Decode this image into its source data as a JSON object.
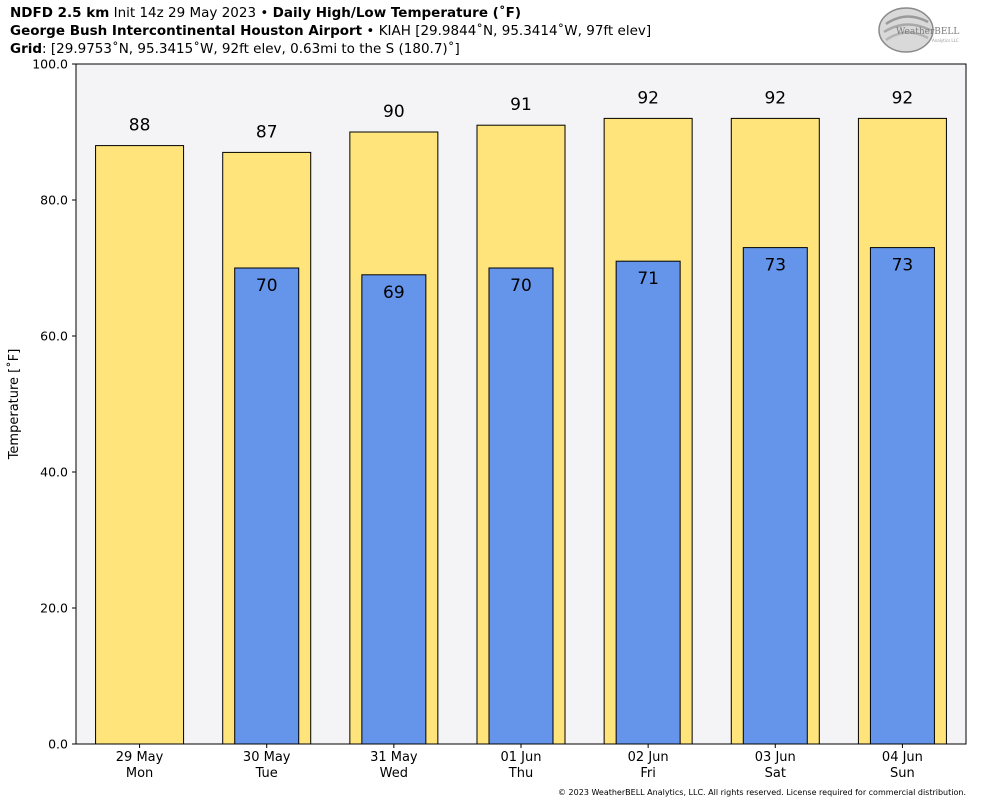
{
  "header": {
    "line1_bold": "NDFD 2.5 km",
    "line1_mid": "Init 14z 29 May 2023",
    "line1_sep": "•",
    "line1_bold2": "Daily High/Low Temperature (˚F)",
    "line2_bold": "George Bush Intercontinental Houston Airport",
    "line2_sep": "•",
    "line2_rest": "KIAH [29.9844˚N, 95.3414˚W, 97ft elev]",
    "line3_bold": "Grid",
    "line3_rest": ": [29.9753˚N, 95.3415˚W, 92ft elev, 0.63mi to the S (180.7)˚]"
  },
  "logo": {
    "text": "WeatherBELL",
    "sub": "Analytics LLC"
  },
  "copyright": "© 2023 WeatherBELL Analytics, LLC. All rights reserved. License required for commercial distribution.",
  "colors": {
    "high": "#FFE47C",
    "low": "#6495EB",
    "plot_bg": "#F4F3F5",
    "outline": "#000000"
  },
  "chart_data": {
    "type": "bar",
    "categories": [
      [
        "29 May",
        "Mon"
      ],
      [
        "30 May",
        "Tue"
      ],
      [
        "31 May",
        "Wed"
      ],
      [
        "01 Jun",
        "Thu"
      ],
      [
        "02 Jun",
        "Fri"
      ],
      [
        "03 Jun",
        "Sat"
      ],
      [
        "04 Jun",
        "Sun"
      ]
    ],
    "series": [
      {
        "values": [
          88,
          87,
          90,
          91,
          92,
          92,
          92
        ]
      },
      {
        "values": [
          null,
          70,
          69,
          70,
          71,
          73,
          73
        ]
      }
    ],
    "ylabel": "Temperature [˚F]",
    "ylim": [
      0,
      100
    ],
    "yticks": [
      "0.0",
      "20.0",
      "40.0",
      "60.0",
      "80.0",
      "100.0"
    ],
    "ytick_values": [
      0,
      20,
      40,
      60,
      80,
      100
    ],
    "grid": false
  }
}
